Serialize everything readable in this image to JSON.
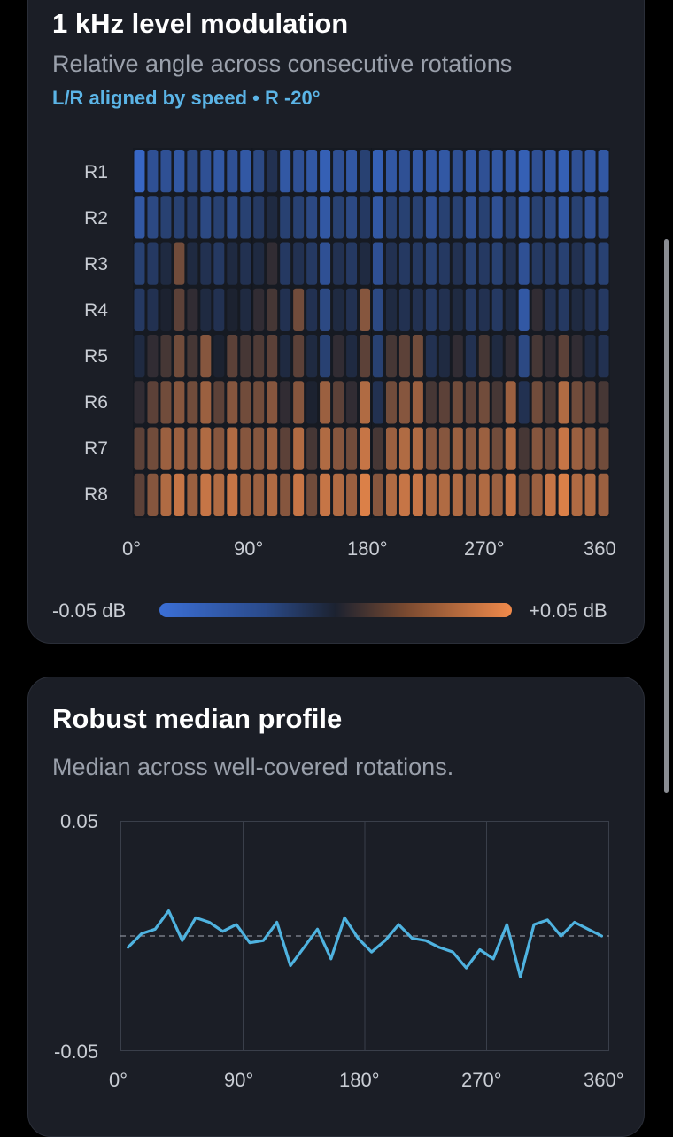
{
  "heatmap_card": {
    "title": "1 kHz level modulation",
    "subtitle": "Relative angle across consecutive rotations",
    "tag": "L/R aligned by speed • R -20°",
    "legend": {
      "min_label": "-0.05 dB",
      "max_label": "+0.05 dB"
    },
    "colors": {
      "negative": "#3b6fd6",
      "positive": "#f08a4b",
      "zero": "#1c2230"
    }
  },
  "profile_card": {
    "title": "Robust median profile",
    "subtitle": "Median across well-covered rotations.",
    "line_color": "#4fb3e0"
  },
  "chart_data": [
    {
      "type": "heatmap",
      "rows": [
        "R1",
        "R2",
        "R3",
        "R4",
        "R5",
        "R6",
        "R7",
        "R8"
      ],
      "x_tick_labels": [
        "0°",
        "90°",
        "180°",
        "270°",
        "360"
      ],
      "x_range": [
        0,
        360
      ],
      "columns": 36,
      "value_range": [
        -0.05,
        0.05
      ],
      "values": [
        [
          -0.045,
          -0.03,
          -0.03,
          -0.035,
          -0.025,
          -0.03,
          -0.035,
          -0.03,
          -0.035,
          -0.025,
          -0.01,
          -0.035,
          -0.03,
          -0.035,
          -0.04,
          -0.03,
          -0.035,
          -0.02,
          -0.04,
          -0.035,
          -0.03,
          -0.035,
          -0.035,
          -0.035,
          -0.03,
          -0.035,
          -0.03,
          -0.035,
          -0.035,
          -0.04,
          -0.03,
          -0.035,
          -0.04,
          -0.03,
          -0.035,
          -0.035
        ],
        [
          -0.035,
          -0.025,
          -0.02,
          -0.02,
          -0.015,
          -0.025,
          -0.02,
          -0.025,
          -0.02,
          -0.015,
          -0.005,
          -0.02,
          -0.02,
          -0.025,
          -0.035,
          -0.02,
          -0.025,
          -0.015,
          -0.035,
          -0.02,
          -0.02,
          -0.02,
          -0.03,
          -0.02,
          -0.02,
          -0.03,
          -0.02,
          -0.03,
          -0.02,
          -0.035,
          -0.02,
          -0.025,
          -0.035,
          -0.02,
          -0.03,
          -0.025
        ],
        [
          -0.02,
          -0.015,
          -0.005,
          0.02,
          -0.005,
          -0.01,
          -0.015,
          -0.005,
          -0.01,
          -0.005,
          0.005,
          -0.015,
          -0.01,
          -0.015,
          -0.03,
          -0.01,
          -0.015,
          -0.005,
          -0.03,
          -0.01,
          -0.015,
          -0.015,
          -0.02,
          -0.015,
          -0.01,
          -0.02,
          -0.015,
          -0.02,
          -0.01,
          -0.03,
          -0.015,
          -0.015,
          -0.02,
          -0.01,
          -0.02,
          -0.02
        ],
        [
          -0.015,
          -0.01,
          0.0,
          0.015,
          0.005,
          -0.005,
          -0.01,
          0.0,
          -0.005,
          0.005,
          0.01,
          -0.01,
          0.02,
          -0.01,
          -0.025,
          -0.005,
          -0.01,
          0.025,
          -0.025,
          -0.005,
          -0.01,
          -0.01,
          -0.015,
          -0.01,
          -0.005,
          -0.015,
          -0.01,
          -0.015,
          -0.005,
          -0.035,
          0.005,
          -0.01,
          -0.015,
          -0.005,
          -0.01,
          -0.015
        ],
        [
          -0.005,
          0.005,
          0.01,
          0.02,
          0.01,
          0.025,
          0.0,
          0.015,
          0.01,
          0.012,
          0.015,
          -0.005,
          0.015,
          -0.005,
          -0.02,
          0.005,
          -0.005,
          0.015,
          -0.02,
          0.01,
          0.015,
          0.02,
          -0.01,
          -0.005,
          0.005,
          -0.01,
          0.01,
          -0.005,
          0.005,
          -0.025,
          0.01,
          0.005,
          0.015,
          0.005,
          -0.005,
          -0.01
        ],
        [
          0.005,
          0.015,
          0.02,
          0.025,
          0.02,
          0.03,
          0.015,
          0.025,
          0.02,
          0.02,
          0.025,
          0.005,
          0.025,
          0.0,
          0.03,
          0.015,
          0.005,
          0.035,
          -0.01,
          0.02,
          0.025,
          0.03,
          0.01,
          0.015,
          0.02,
          0.015,
          0.02,
          0.01,
          0.03,
          -0.01,
          0.02,
          0.01,
          0.035,
          0.02,
          0.015,
          0.01
        ],
        [
          0.015,
          0.02,
          0.03,
          0.03,
          0.025,
          0.035,
          0.025,
          0.035,
          0.025,
          0.025,
          0.03,
          0.015,
          0.035,
          0.01,
          0.035,
          0.025,
          0.02,
          0.04,
          0.01,
          0.03,
          0.035,
          0.035,
          0.025,
          0.025,
          0.03,
          0.025,
          0.03,
          0.02,
          0.035,
          0.01,
          0.025,
          0.02,
          0.04,
          0.03,
          0.025,
          0.02
        ],
        [
          0.015,
          0.025,
          0.035,
          0.04,
          0.03,
          0.04,
          0.035,
          0.04,
          0.03,
          0.03,
          0.035,
          0.025,
          0.04,
          0.02,
          0.04,
          0.035,
          0.03,
          0.045,
          0.025,
          0.035,
          0.04,
          0.04,
          0.035,
          0.035,
          0.035,
          0.03,
          0.035,
          0.03,
          0.04,
          0.02,
          0.03,
          0.04,
          0.045,
          0.035,
          0.035,
          0.03
        ]
      ]
    },
    {
      "type": "line",
      "x_tick_labels": [
        "0°",
        "90°",
        "180°",
        "270°",
        "360°"
      ],
      "y_tick_labels": [
        "0.05",
        "-0.05"
      ],
      "xlim": [
        0,
        360
      ],
      "ylim": [
        -0.05,
        0.05
      ],
      "grid": true,
      "reference_line": 0,
      "x": [
        5,
        15,
        25,
        35,
        45,
        55,
        65,
        75,
        85,
        95,
        105,
        115,
        125,
        135,
        145,
        155,
        165,
        175,
        185,
        195,
        205,
        215,
        225,
        235,
        245,
        255,
        265,
        275,
        285,
        295,
        305,
        315,
        325,
        335,
        345,
        355
      ],
      "y": [
        -0.005,
        0.001,
        0.003,
        0.011,
        -0.002,
        0.008,
        0.006,
        0.002,
        0.005,
        -0.003,
        -0.002,
        0.006,
        -0.013,
        -0.005,
        0.003,
        -0.01,
        0.008,
        -0.001,
        -0.007,
        -0.002,
        0.005,
        -0.001,
        -0.002,
        -0.005,
        -0.007,
        -0.014,
        -0.006,
        -0.01,
        0.005,
        -0.018,
        0.005,
        0.007,
        0.0,
        0.006,
        0.003,
        0.0
      ]
    }
  ]
}
